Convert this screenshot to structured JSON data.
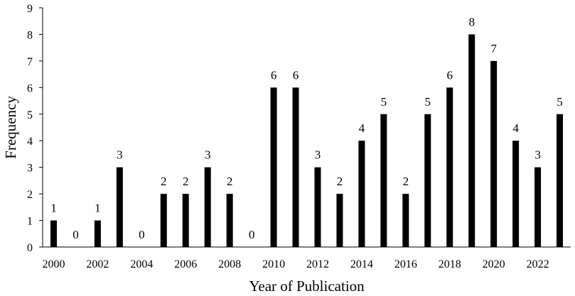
{
  "chart_data": {
    "type": "bar",
    "xlabel": "Year of Publication",
    "ylabel": "Frequency",
    "ylim": [
      0,
      9
    ],
    "yticks": [
      0,
      1,
      2,
      3,
      4,
      5,
      6,
      7,
      8,
      9
    ],
    "categories": [
      "2000",
      "2001",
      "2002",
      "2003",
      "2004",
      "2005",
      "2006",
      "2007",
      "2008",
      "2009",
      "2010",
      "2011",
      "2012",
      "2013",
      "2014",
      "2015",
      "2016",
      "2017",
      "2018",
      "2019",
      "2020",
      "2021",
      "2022",
      "2023"
    ],
    "xtick_labels": [
      "2000",
      "2002",
      "2004",
      "2006",
      "2008",
      "2010",
      "2012",
      "2014",
      "2016",
      "2018",
      "2020",
      "2022"
    ],
    "values": [
      1,
      0,
      1,
      3,
      0,
      2,
      2,
      3,
      2,
      0,
      6,
      6,
      3,
      2,
      4,
      5,
      2,
      5,
      6,
      8,
      7,
      4,
      3,
      5
    ],
    "data_labels": true,
    "grid": false,
    "legend": "none",
    "bar_color": "#000000"
  }
}
